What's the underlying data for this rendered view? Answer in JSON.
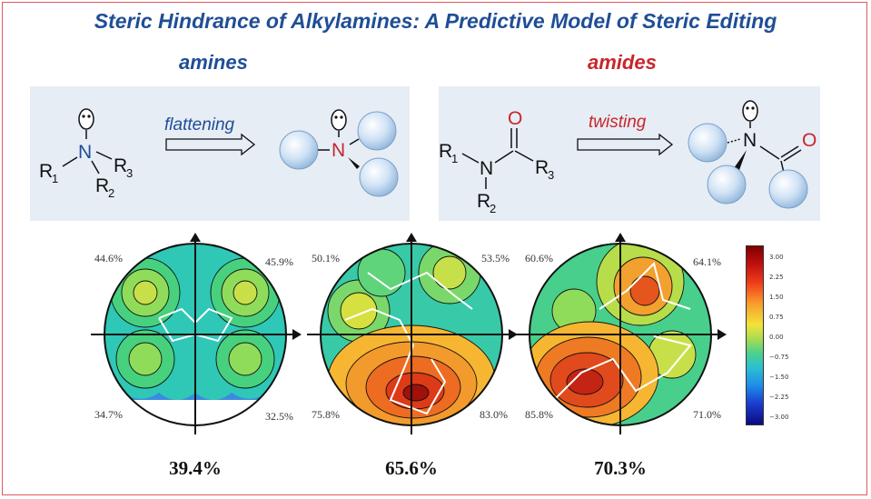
{
  "title": "Steric Hindrance of Alkylamines: A Predictive Model of Steric Editing",
  "amines": {
    "label": "amines",
    "color": "#1f4e96",
    "arrow_label": "flattening",
    "atoms": {
      "n": "N",
      "r1": "R",
      "r1_sub": "1",
      "r2": "R",
      "r2_sub": "2",
      "r3": "R",
      "r3_sub": "3"
    }
  },
  "amides": {
    "label": "amides",
    "color": "#c8262c",
    "arrow_label": "twisting",
    "atoms": {
      "n": "N",
      "o": "O",
      "r1": "R",
      "r1_sub": "1",
      "r2": "R",
      "r2_sub": "2",
      "r3": "R",
      "r3_sub": "3"
    }
  },
  "maps": [
    {
      "total": "39.4%",
      "quadrants": {
        "top_left": "44.6%",
        "top_right": "45.9%",
        "bottom_left": "34.7%",
        "bottom_right": "32.5%"
      }
    },
    {
      "total": "65.6%",
      "quadrants": {
        "top_left": "50.1%",
        "top_right": "53.5%",
        "bottom_left": "75.8%",
        "bottom_right": "83.0%"
      }
    },
    {
      "total": "70.3%",
      "quadrants": {
        "top_left": "60.6%",
        "top_right": "64.1%",
        "bottom_left": "85.8%",
        "bottom_right": "71.0%"
      }
    }
  ],
  "colorbar": {
    "ticks": [
      "3.00",
      "2.25",
      "1.50",
      "0.75",
      "0.00",
      "−0.75",
      "−1.50",
      "−2.25",
      "−3.00"
    ]
  }
}
